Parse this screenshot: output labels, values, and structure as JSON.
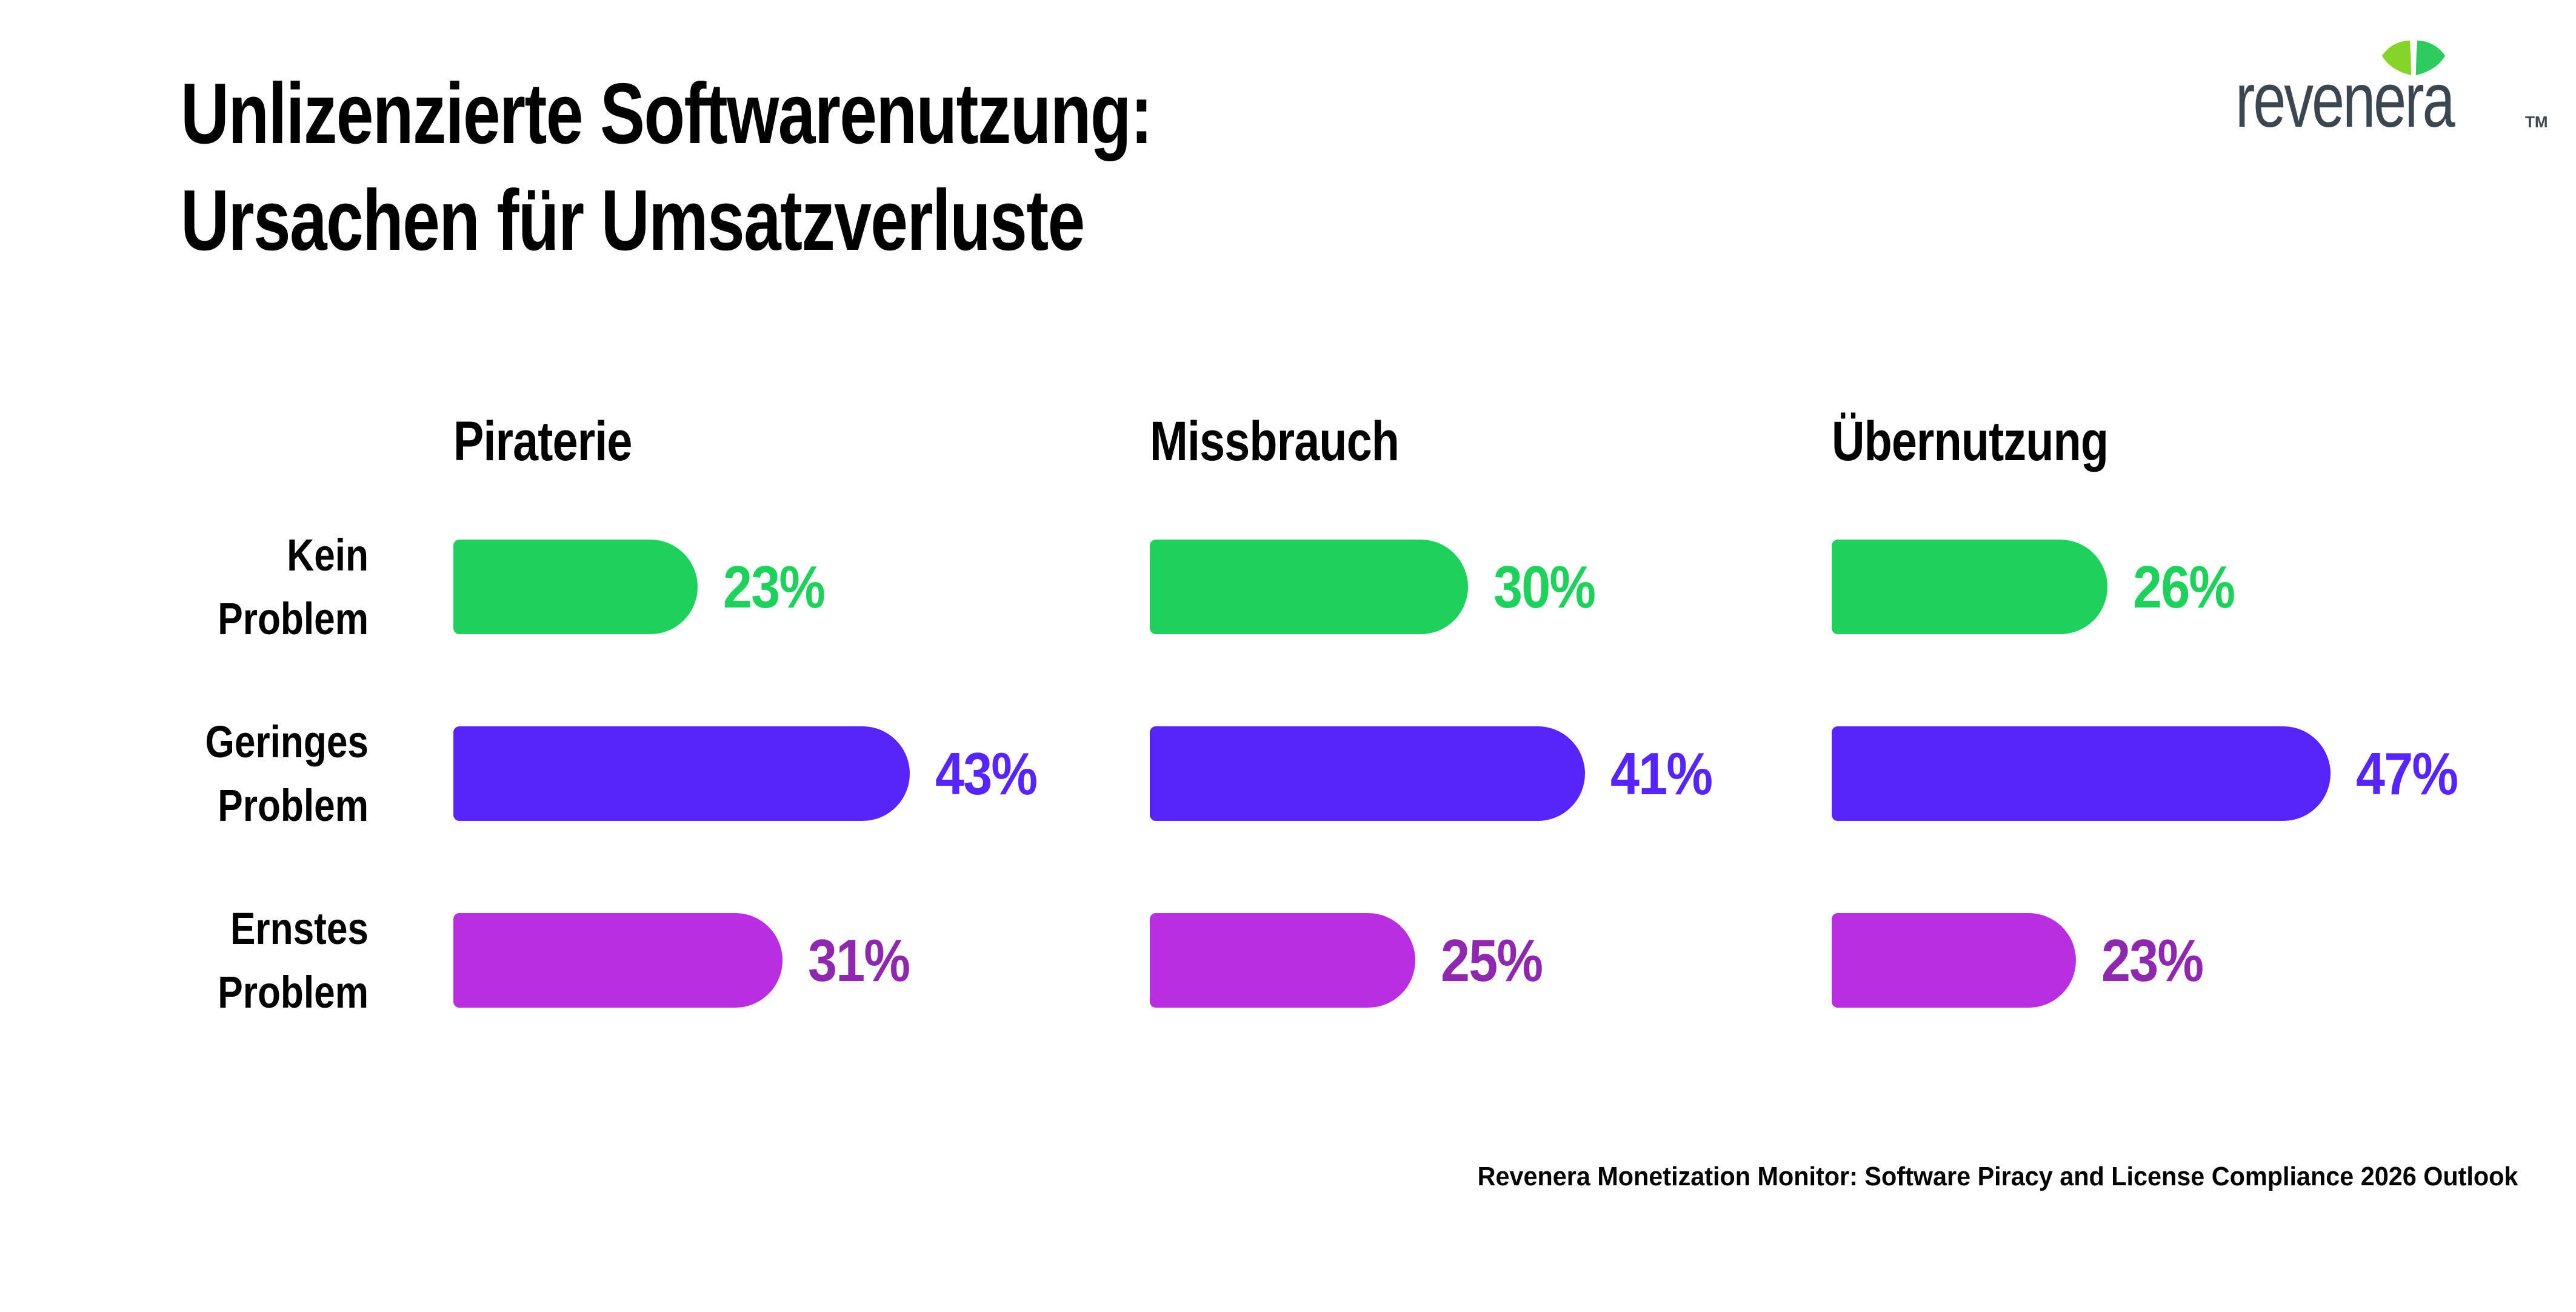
{
  "page": {
    "background": "#ffffff"
  },
  "title": {
    "line1": "Unlizenzierte Softwarenutzung:",
    "line2": "Ursachen für Umsatzverluste"
  },
  "logo": {
    "text": "revenera",
    "tm": "TM",
    "colors": {
      "text": "#3A4650",
      "leaf_left": "#86D42A",
      "leaf_right": "#2ECC5E"
    }
  },
  "footer": {
    "source": "Revenera Monetization Monitor: Software Piracy and License Compliance 2026 Outlook"
  },
  "chart_data": {
    "type": "bar",
    "orientation": "horizontal",
    "title": "Unlizenzierte Softwarenutzung: Ursachen für Umsatzverluste",
    "unit": "%",
    "value_range": [
      0,
      50
    ],
    "grid": false,
    "legend": "none",
    "categories": [
      "Kein Problem",
      "Geringes Problem",
      "Ernstes Problem"
    ],
    "category_lines": [
      [
        "Kein",
        "Problem"
      ],
      [
        "Geringes",
        "Problem"
      ],
      [
        "Ernstes",
        "Problem"
      ]
    ],
    "groups": [
      {
        "label": "Piraterie",
        "values": [
          23,
          43,
          31
        ],
        "value_labels": [
          "23%",
          "43%",
          "31%"
        ]
      },
      {
        "label": "Missbrauch",
        "values": [
          30,
          41,
          25
        ],
        "value_labels": [
          "30%",
          "41%",
          "25%"
        ]
      },
      {
        "label": "Übernutzung",
        "values": [
          26,
          47,
          23
        ],
        "value_labels": [
          "26%",
          "47%",
          "23%"
        ]
      }
    ],
    "bar_colors": [
      "#1FD05D",
      "#5724FA",
      "#B82EE0"
    ],
    "value_label_colors": [
      "#1FD05D",
      "#5724FA",
      "#8E28AE"
    ]
  }
}
